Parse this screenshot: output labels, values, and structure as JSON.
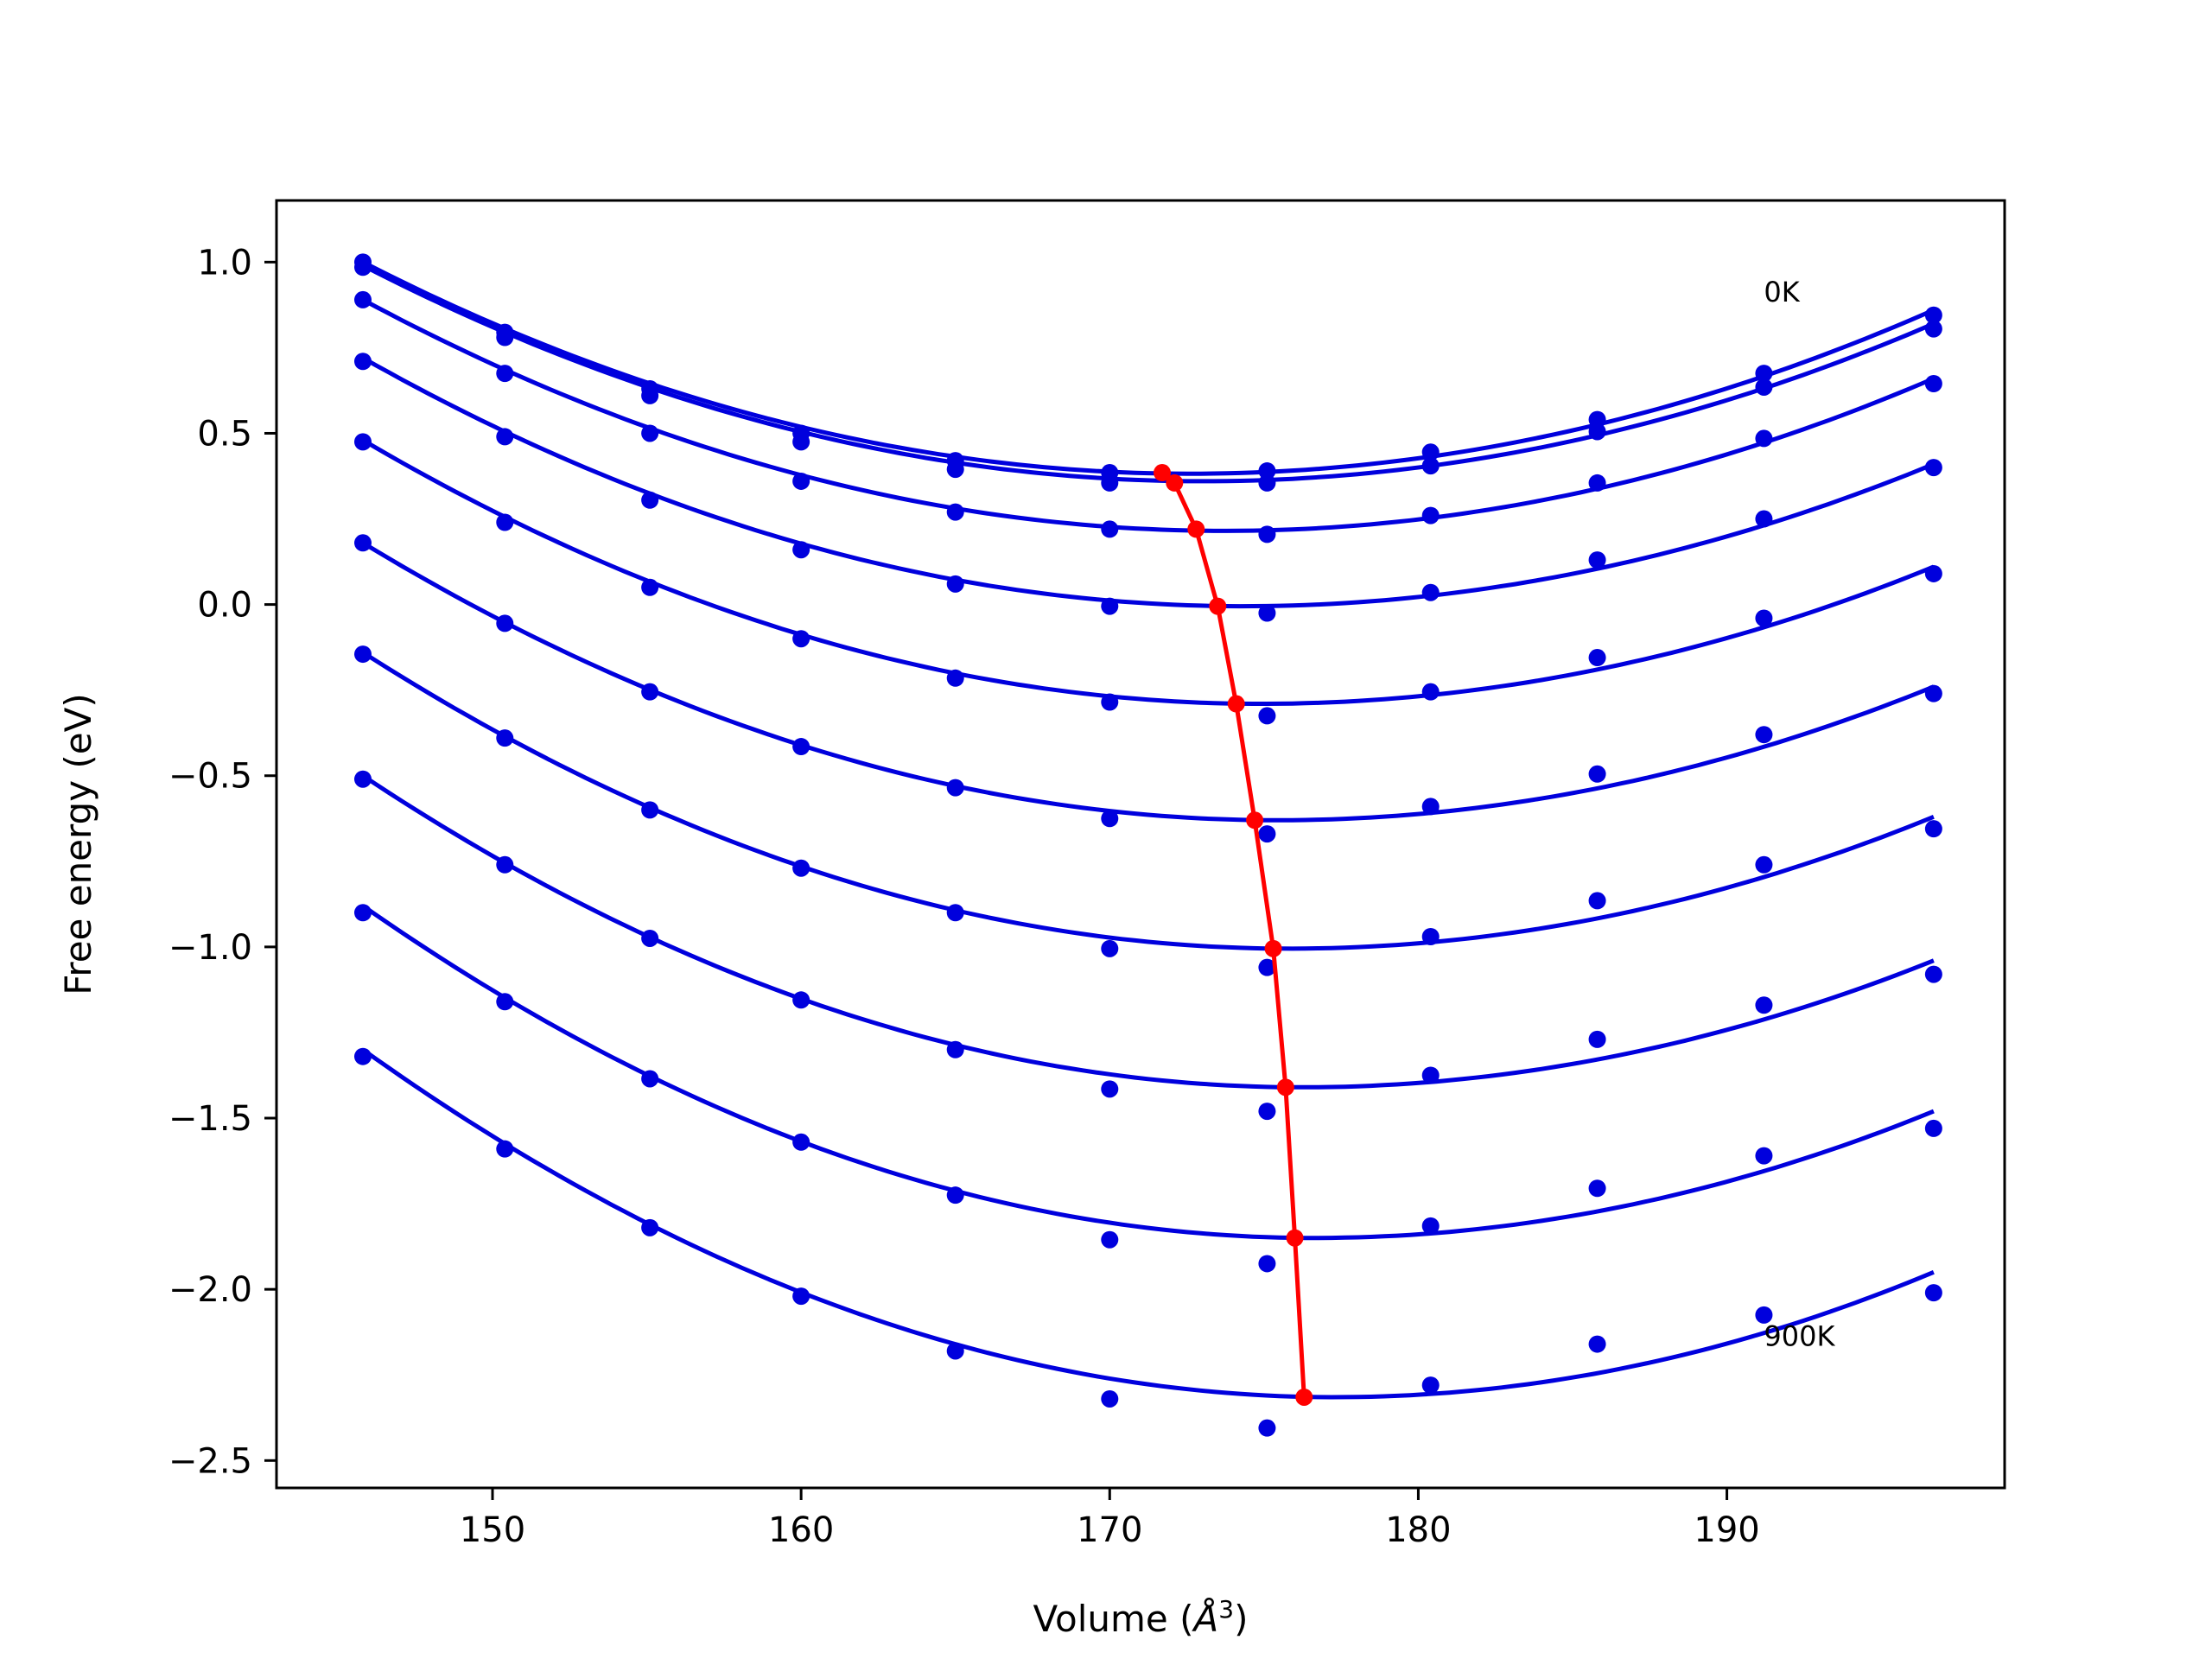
{
  "chart_data": {
    "type": "scatter",
    "xlabel": "Volume (",
    "xlabel_unit": "Å",
    "xlabel_exp": "3",
    "xlabel_close": ")",
    "ylabel": "Free energy (eV)",
    "xlim": [
      143,
      199
    ],
    "ylim": [
      -2.58,
      1.18
    ],
    "xticks": [
      150,
      160,
      170,
      180,
      190
    ],
    "yticks": [
      -2.5,
      -2.0,
      -1.5,
      -1.0,
      -0.5,
      0.0,
      0.5,
      1.0
    ],
    "xtick_labels": [
      "150",
      "160",
      "170",
      "180",
      "190"
    ],
    "ytick_labels": [
      "−2.5",
      "−2.0",
      "−1.5",
      "−1.0",
      "−0.5",
      "0.0",
      "0.5",
      "1.0"
    ],
    "grid": false,
    "colors": {
      "data": "#0000dd",
      "minimum": "#ff0000"
    },
    "volumes": [
      145.8,
      150.4,
      155.1,
      160.0,
      165.0,
      170.0,
      175.1,
      180.4,
      185.8,
      191.2,
      196.7
    ],
    "series": [
      {
        "values": [
          1.0,
          0.795,
          0.63,
          0.5,
          0.42,
          0.385,
          0.39,
          0.445,
          0.54,
          0.675,
          0.845
        ],
        "fit_vertex": [
          172.6,
          0.382
        ],
        "fit_ends": [
          1.0,
          0.86
        ]
      },
      {
        "values": [
          0.985,
          0.78,
          0.61,
          0.475,
          0.395,
          0.355,
          0.355,
          0.405,
          0.505,
          0.635,
          0.805
        ],
        "fit_vertex": [
          173.0,
          0.36
        ],
        "fit_ends": [
          0.99,
          0.82
        ]
      },
      {
        "values": [
          0.89,
          0.675,
          0.5,
          0.36,
          0.27,
          0.22,
          0.205,
          0.26,
          0.355,
          0.485,
          0.645
        ],
        "fit_vertex": [
          173.7,
          0.215
        ],
        "fit_ends": [
          0.89,
          0.66
        ]
      },
      {
        "values": [
          0.71,
          0.49,
          0.305,
          0.16,
          0.06,
          -0.005,
          -0.025,
          0.035,
          0.13,
          0.25,
          0.4
        ],
        "fit_vertex": [
          174.3,
          -0.005
        ],
        "fit_ends": [
          0.72,
          0.41
        ]
      },
      {
        "values": [
          0.475,
          0.24,
          0.05,
          -0.1,
          -0.215,
          -0.285,
          -0.325,
          -0.255,
          -0.155,
          -0.04,
          0.09
        ],
        "fit_vertex": [
          174.9,
          -0.29
        ],
        "fit_ends": [
          0.48,
          0.11
        ]
      },
      {
        "values": [
          0.18,
          -0.055,
          -0.255,
          -0.415,
          -0.535,
          -0.625,
          -0.67,
          -0.59,
          -0.495,
          -0.38,
          -0.26
        ],
        "fit_vertex": [
          175.4,
          -0.63
        ],
        "fit_ends": [
          0.18,
          -0.24
        ]
      },
      {
        "values": [
          -0.145,
          -0.39,
          -0.6,
          -0.77,
          -0.9,
          -1.005,
          -1.06,
          -0.97,
          -0.865,
          -0.76,
          -0.655
        ],
        "fit_vertex": [
          175.8,
          -1.005
        ],
        "fit_ends": [
          -0.14,
          -0.62
        ]
      },
      {
        "values": [
          -0.51,
          -0.76,
          -0.975,
          -1.155,
          -1.3,
          -1.415,
          -1.48,
          -1.375,
          -1.27,
          -1.17,
          -1.08
        ],
        "fit_vertex": [
          176.2,
          -1.41
        ],
        "fit_ends": [
          -0.5,
          -1.04
        ]
      },
      {
        "values": [
          -0.9,
          -1.16,
          -1.385,
          -1.57,
          -1.725,
          -1.855,
          -1.925,
          -1.815,
          -1.705,
          -1.61,
          -1.53
        ],
        "fit_vertex": [
          176.6,
          -1.85
        ],
        "fit_ends": [
          -0.88,
          -1.48
        ]
      },
      {
        "values": [
          -1.32,
          -1.59,
          -1.82,
          -2.02,
          -2.18,
          -2.32,
          -2.405,
          -2.28,
          -2.16,
          -2.075,
          -2.01
        ],
        "fit_vertex": [
          177.3,
          -2.315
        ],
        "fit_ends": [
          -1.3,
          -1.95
        ]
      }
    ],
    "minimum_curve": {
      "x": [
        171.7,
        172.1,
        172.8,
        173.5,
        174.1,
        174.7,
        175.3,
        175.7,
        176.0,
        176.3
      ],
      "y": [
        0.385,
        0.355,
        0.22,
        -0.005,
        -0.29,
        -0.63,
        -1.005,
        -1.41,
        -1.85,
        -2.315
      ]
    },
    "annotations": [
      {
        "text": "0K",
        "x": 191.2,
        "y": 0.915
      },
      {
        "text": "900K",
        "x": 191.2,
        "y": -2.135
      }
    ]
  }
}
